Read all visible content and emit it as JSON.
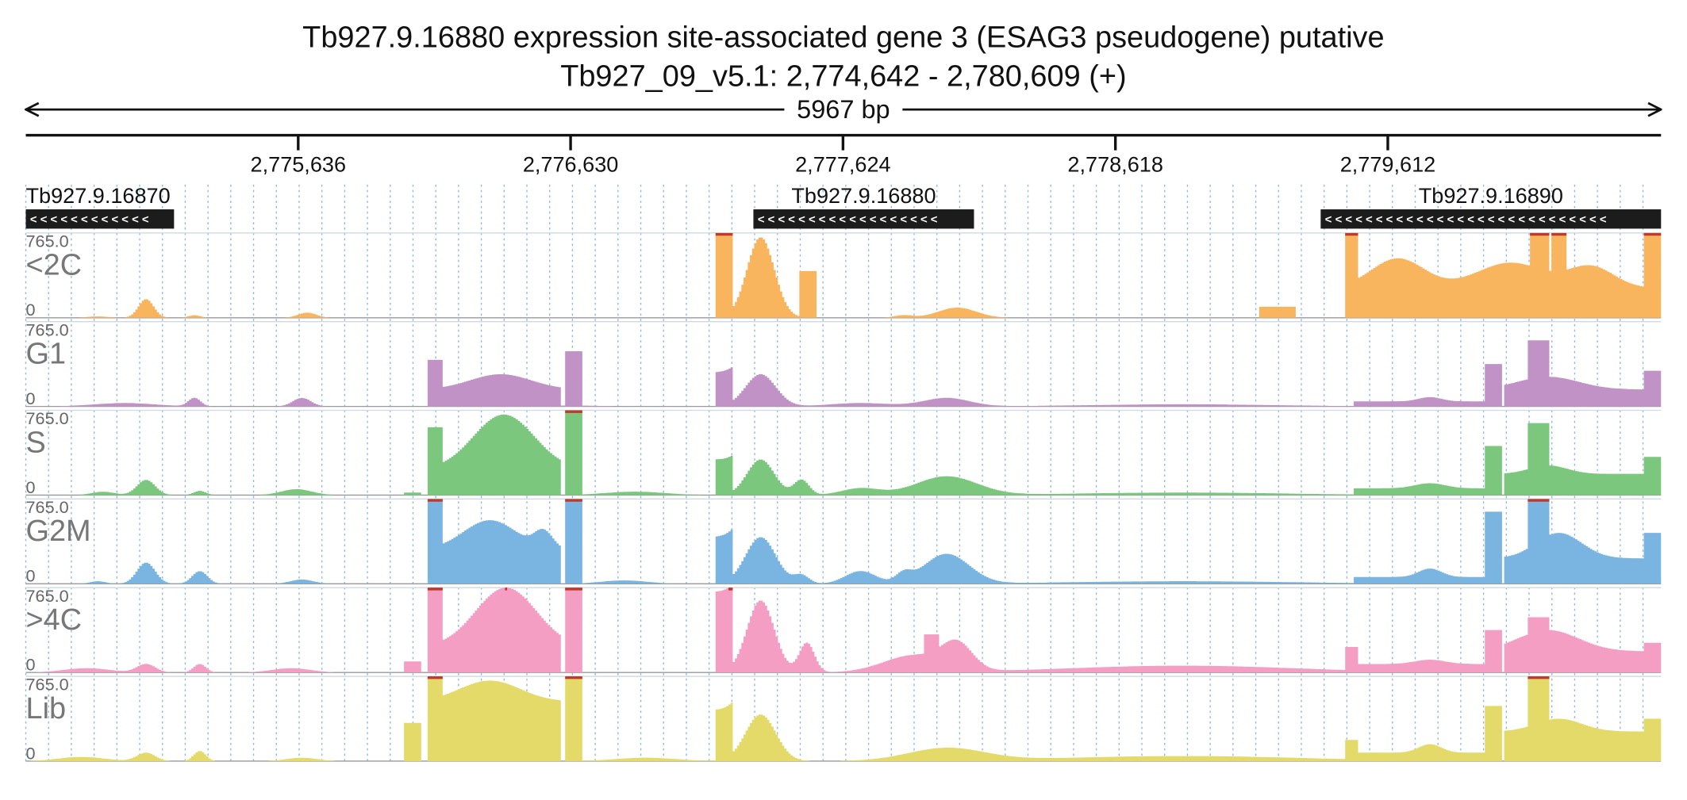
{
  "header": {
    "title_line1": "Tb927.9.16880  expression site-associated gene 3 (ESAG3  pseudogene)  putative",
    "title_line2": "Tb927_09_v5.1: 2,774,642 - 2,780,609 (+)",
    "span_label": "5967 bp"
  },
  "ruler": {
    "ticks": [
      {
        "label": "2,775,636",
        "position": 2775636
      },
      {
        "label": "2,776,630",
        "position": 2776630
      },
      {
        "label": "2,777,624",
        "position": 2777624
      },
      {
        "label": "2,778,618",
        "position": 2778618
      },
      {
        "label": "2,779,612",
        "position": 2779612
      }
    ]
  },
  "genes": [
    {
      "name": "Tb927.9.16870",
      "start": 2774642,
      "end": 2775183,
      "strand": "-"
    },
    {
      "name": "Tb927.9.16880",
      "start": 2777297,
      "end": 2778102,
      "strand": "-"
    },
    {
      "name": "Tb927.9.16890",
      "start": 2779367,
      "end": 2780609,
      "strand": "-"
    }
  ],
  "tracks": [
    {
      "name": "<2C",
      "max": "765.0",
      "min": "0",
      "color": "#f9b45e"
    },
    {
      "name": "G1",
      "max": "765.0",
      "min": "0",
      "color": "#c092c6"
    },
    {
      "name": "S",
      "max": "765.0",
      "min": "0",
      "color": "#7cc77e"
    },
    {
      "name": "G2M",
      "max": "765.0",
      "min": "0",
      "color": "#7ab4e0"
    },
    {
      "name": ">4C",
      "max": "765.0",
      "min": "0",
      "color": "#f59ec4"
    },
    {
      "name": "Lib",
      "max": "765.0",
      "min": "0",
      "color": "#e3da6a"
    }
  ],
  "colors": {
    "gene_block": "#1c1c1c",
    "clip_marker": "#c0392b",
    "grid": "#8fb8e0"
  }
}
